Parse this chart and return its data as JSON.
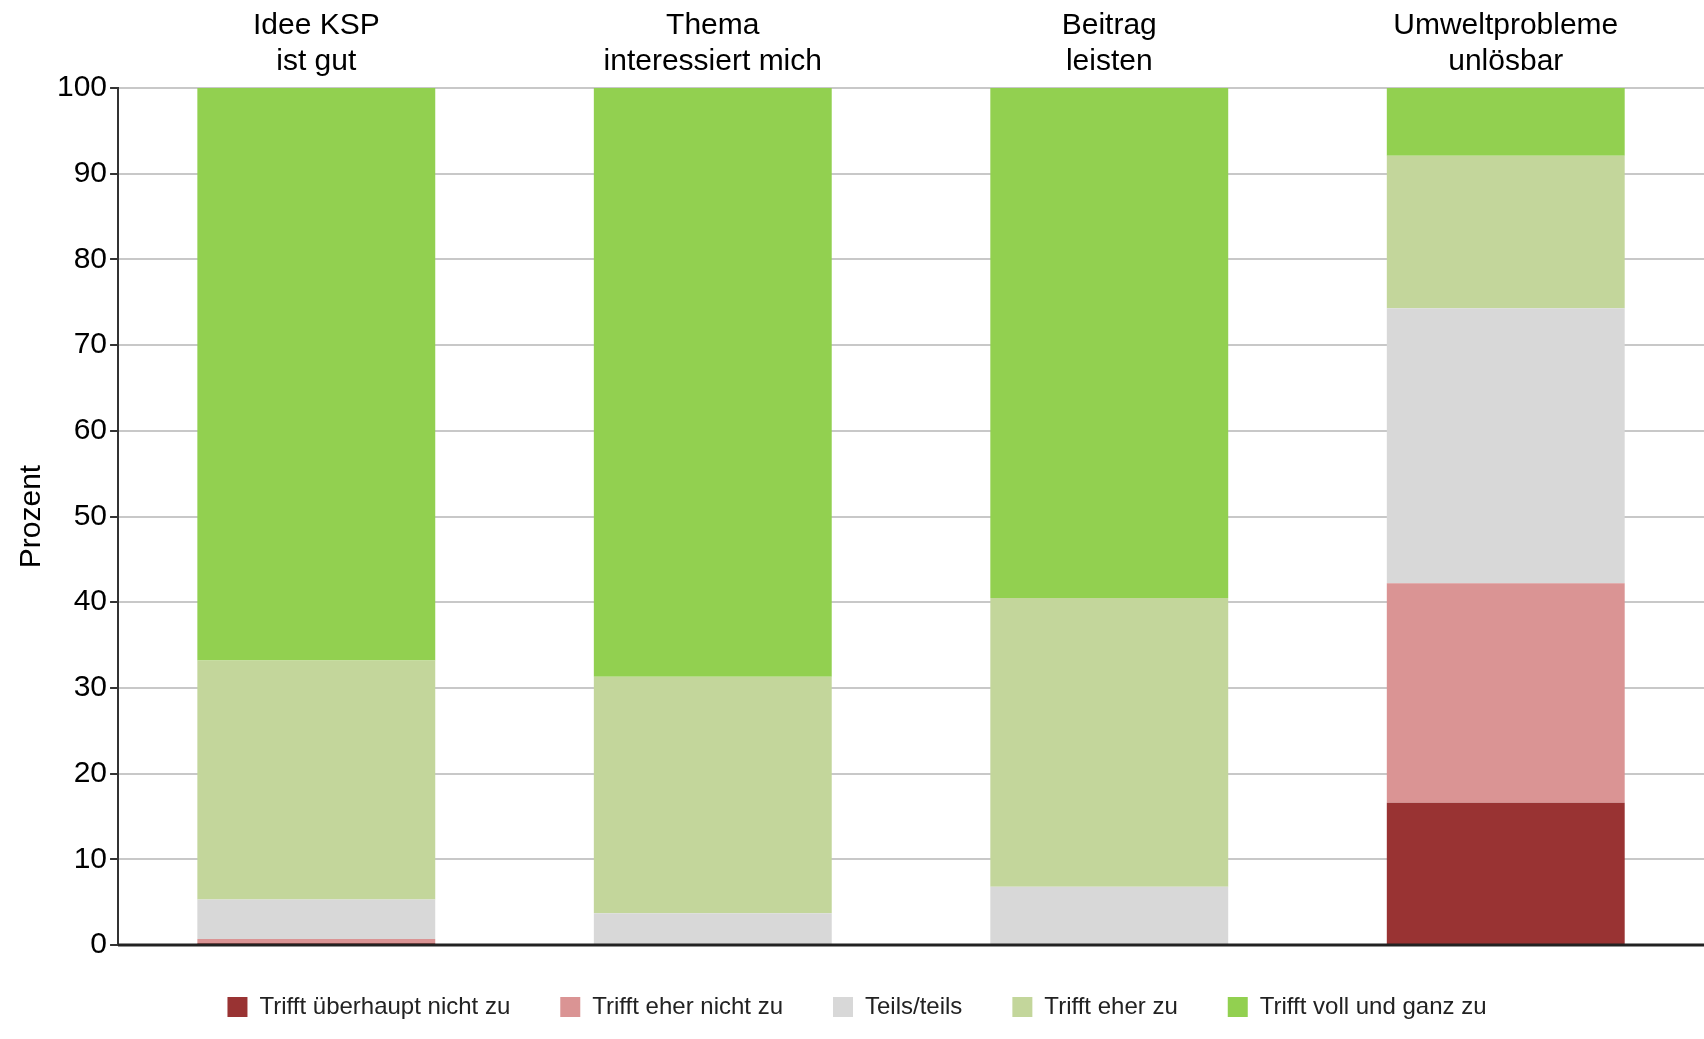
{
  "chart_data": {
    "type": "bar",
    "stacked": true,
    "ylabel": "Prozent",
    "categories": [
      "Idee KSP\nist gut",
      "Thema\ninteressiert mich",
      "Beitrag\nleisten",
      "Umweltprobleme\nunlösbar"
    ],
    "series": [
      {
        "name": "Trifft überhaupt nicht zu",
        "color": "#993333",
        "values": [
          0.2,
          0,
          0,
          16.6
        ]
      },
      {
        "name": "Trifft eher nicht zu",
        "color": "#da9494",
        "values": [
          0.5,
          0,
          0,
          25.6
        ]
      },
      {
        "name": "Teils/teils",
        "color": "#d8d8d8",
        "values": [
          4.6,
          3.7,
          6.8,
          32.1
        ]
      },
      {
        "name": "Trifft eher zu",
        "color": "#c3d69b",
        "values": [
          27.9,
          27.6,
          33.7,
          17.8
        ]
      },
      {
        "name": "Trifft voll und ganz zu",
        "color": "#92d050",
        "values": [
          66.8,
          68.7,
          59.5,
          7.9
        ]
      }
    ],
    "ylim": [
      0,
      100
    ],
    "yticks": [
      0,
      10,
      20,
      30,
      40,
      50,
      60,
      70,
      80,
      90,
      100
    ],
    "grid": "y",
    "legend": "bottom"
  }
}
